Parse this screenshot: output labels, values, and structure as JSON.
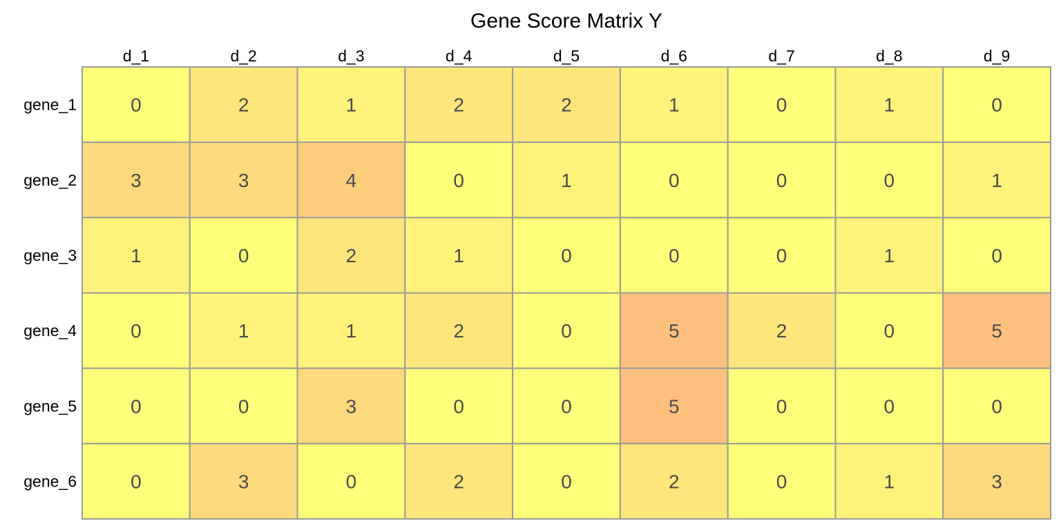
{
  "chart_data": {
    "type": "heatmap",
    "title": "Gene Score Matrix Y",
    "columns": [
      "d_1",
      "d_2",
      "d_3",
      "d_4",
      "d_5",
      "d_6",
      "d_7",
      "d_8",
      "d_9"
    ],
    "rows": [
      "gene_1",
      "gene_2",
      "gene_3",
      "gene_4",
      "gene_5",
      "gene_6"
    ],
    "values": [
      [
        0,
        2,
        1,
        2,
        2,
        1,
        0,
        1,
        0
      ],
      [
        3,
        3,
        4,
        0,
        1,
        0,
        0,
        0,
        1
      ],
      [
        1,
        0,
        2,
        1,
        0,
        0,
        0,
        1,
        0
      ],
      [
        0,
        1,
        1,
        2,
        0,
        5,
        2,
        0,
        5
      ],
      [
        0,
        0,
        3,
        0,
        0,
        5,
        0,
        0,
        0
      ],
      [
        0,
        3,
        0,
        2,
        0,
        2,
        0,
        1,
        3
      ]
    ],
    "value_range": [
      0,
      5
    ],
    "colors": {
      "low": "#ffff7a",
      "high": "#ffc07f",
      "grid": "#9a9a9a",
      "value_text": "#4a4a4a"
    },
    "legend": "none"
  }
}
